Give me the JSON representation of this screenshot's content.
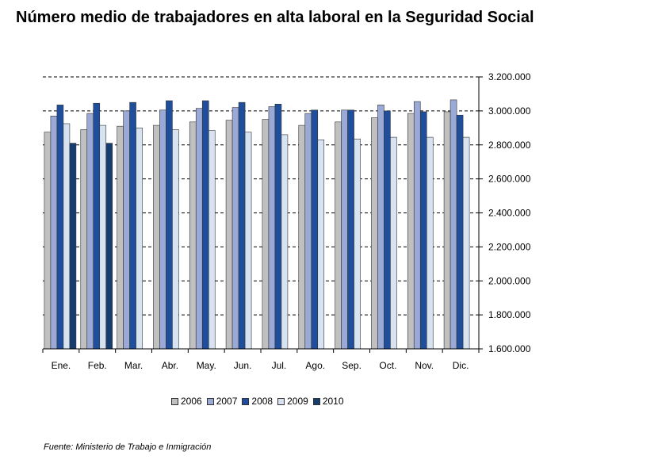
{
  "title": "Número medio de trabajadores en alta laboral en la Seguridad Social",
  "source": "Fuente: Ministerio de Trabajo e Inmigración",
  "colors": {
    "2006": "#c0c0c0",
    "2007": "#9aa9d6",
    "2008": "#1f4f9c",
    "2009": "#d8e3f2",
    "2010": "#173d6e"
  },
  "chart_data": {
    "type": "bar",
    "title": "Número medio de trabajadores en alta laboral en la Seguridad Social",
    "xlabel": "",
    "ylabel": "",
    "categories": [
      "Ene.",
      "Feb.",
      "Mar.",
      "Abr.",
      "May.",
      "Jun.",
      "Jul.",
      "Ago.",
      "Sep.",
      "Oct.",
      "Nov.",
      "Dic."
    ],
    "ylim": [
      1600000,
      3200000
    ],
    "yticks": [
      1600000,
      1800000,
      2000000,
      2200000,
      2400000,
      2600000,
      2800000,
      3000000,
      3200000
    ],
    "ytick_labels": [
      "1.600.000",
      "1.800.000",
      "2.000.000",
      "2.200.000",
      "2.400.000",
      "2.600.000",
      "2.800.000",
      "3.000.000",
      "3.200.000"
    ],
    "grid": "horizontal dashed",
    "legend_position": "bottom",
    "series": [
      {
        "name": "2006",
        "values": [
          2875000,
          2890000,
          2910000,
          2915000,
          2935000,
          2945000,
          2950000,
          2915000,
          2935000,
          2960000,
          2985000,
          2995000
        ]
      },
      {
        "name": "2007",
        "values": [
          2970000,
          2985000,
          3000000,
          3005000,
          3015000,
          3020000,
          3025000,
          2985000,
          3005000,
          3035000,
          3055000,
          3065000
        ]
      },
      {
        "name": "2008",
        "values": [
          3035000,
          3045000,
          3050000,
          3060000,
          3060000,
          3050000,
          3040000,
          3005000,
          3005000,
          3000000,
          2995000,
          2975000
        ]
      },
      {
        "name": "2009",
        "values": [
          2925000,
          2915000,
          2900000,
          2890000,
          2885000,
          2875000,
          2860000,
          2830000,
          2835000,
          2845000,
          2845000,
          2845000
        ]
      },
      {
        "name": "2010",
        "values": [
          2810000,
          2810000,
          null,
          null,
          null,
          null,
          null,
          null,
          null,
          null,
          null,
          null
        ]
      }
    ]
  }
}
